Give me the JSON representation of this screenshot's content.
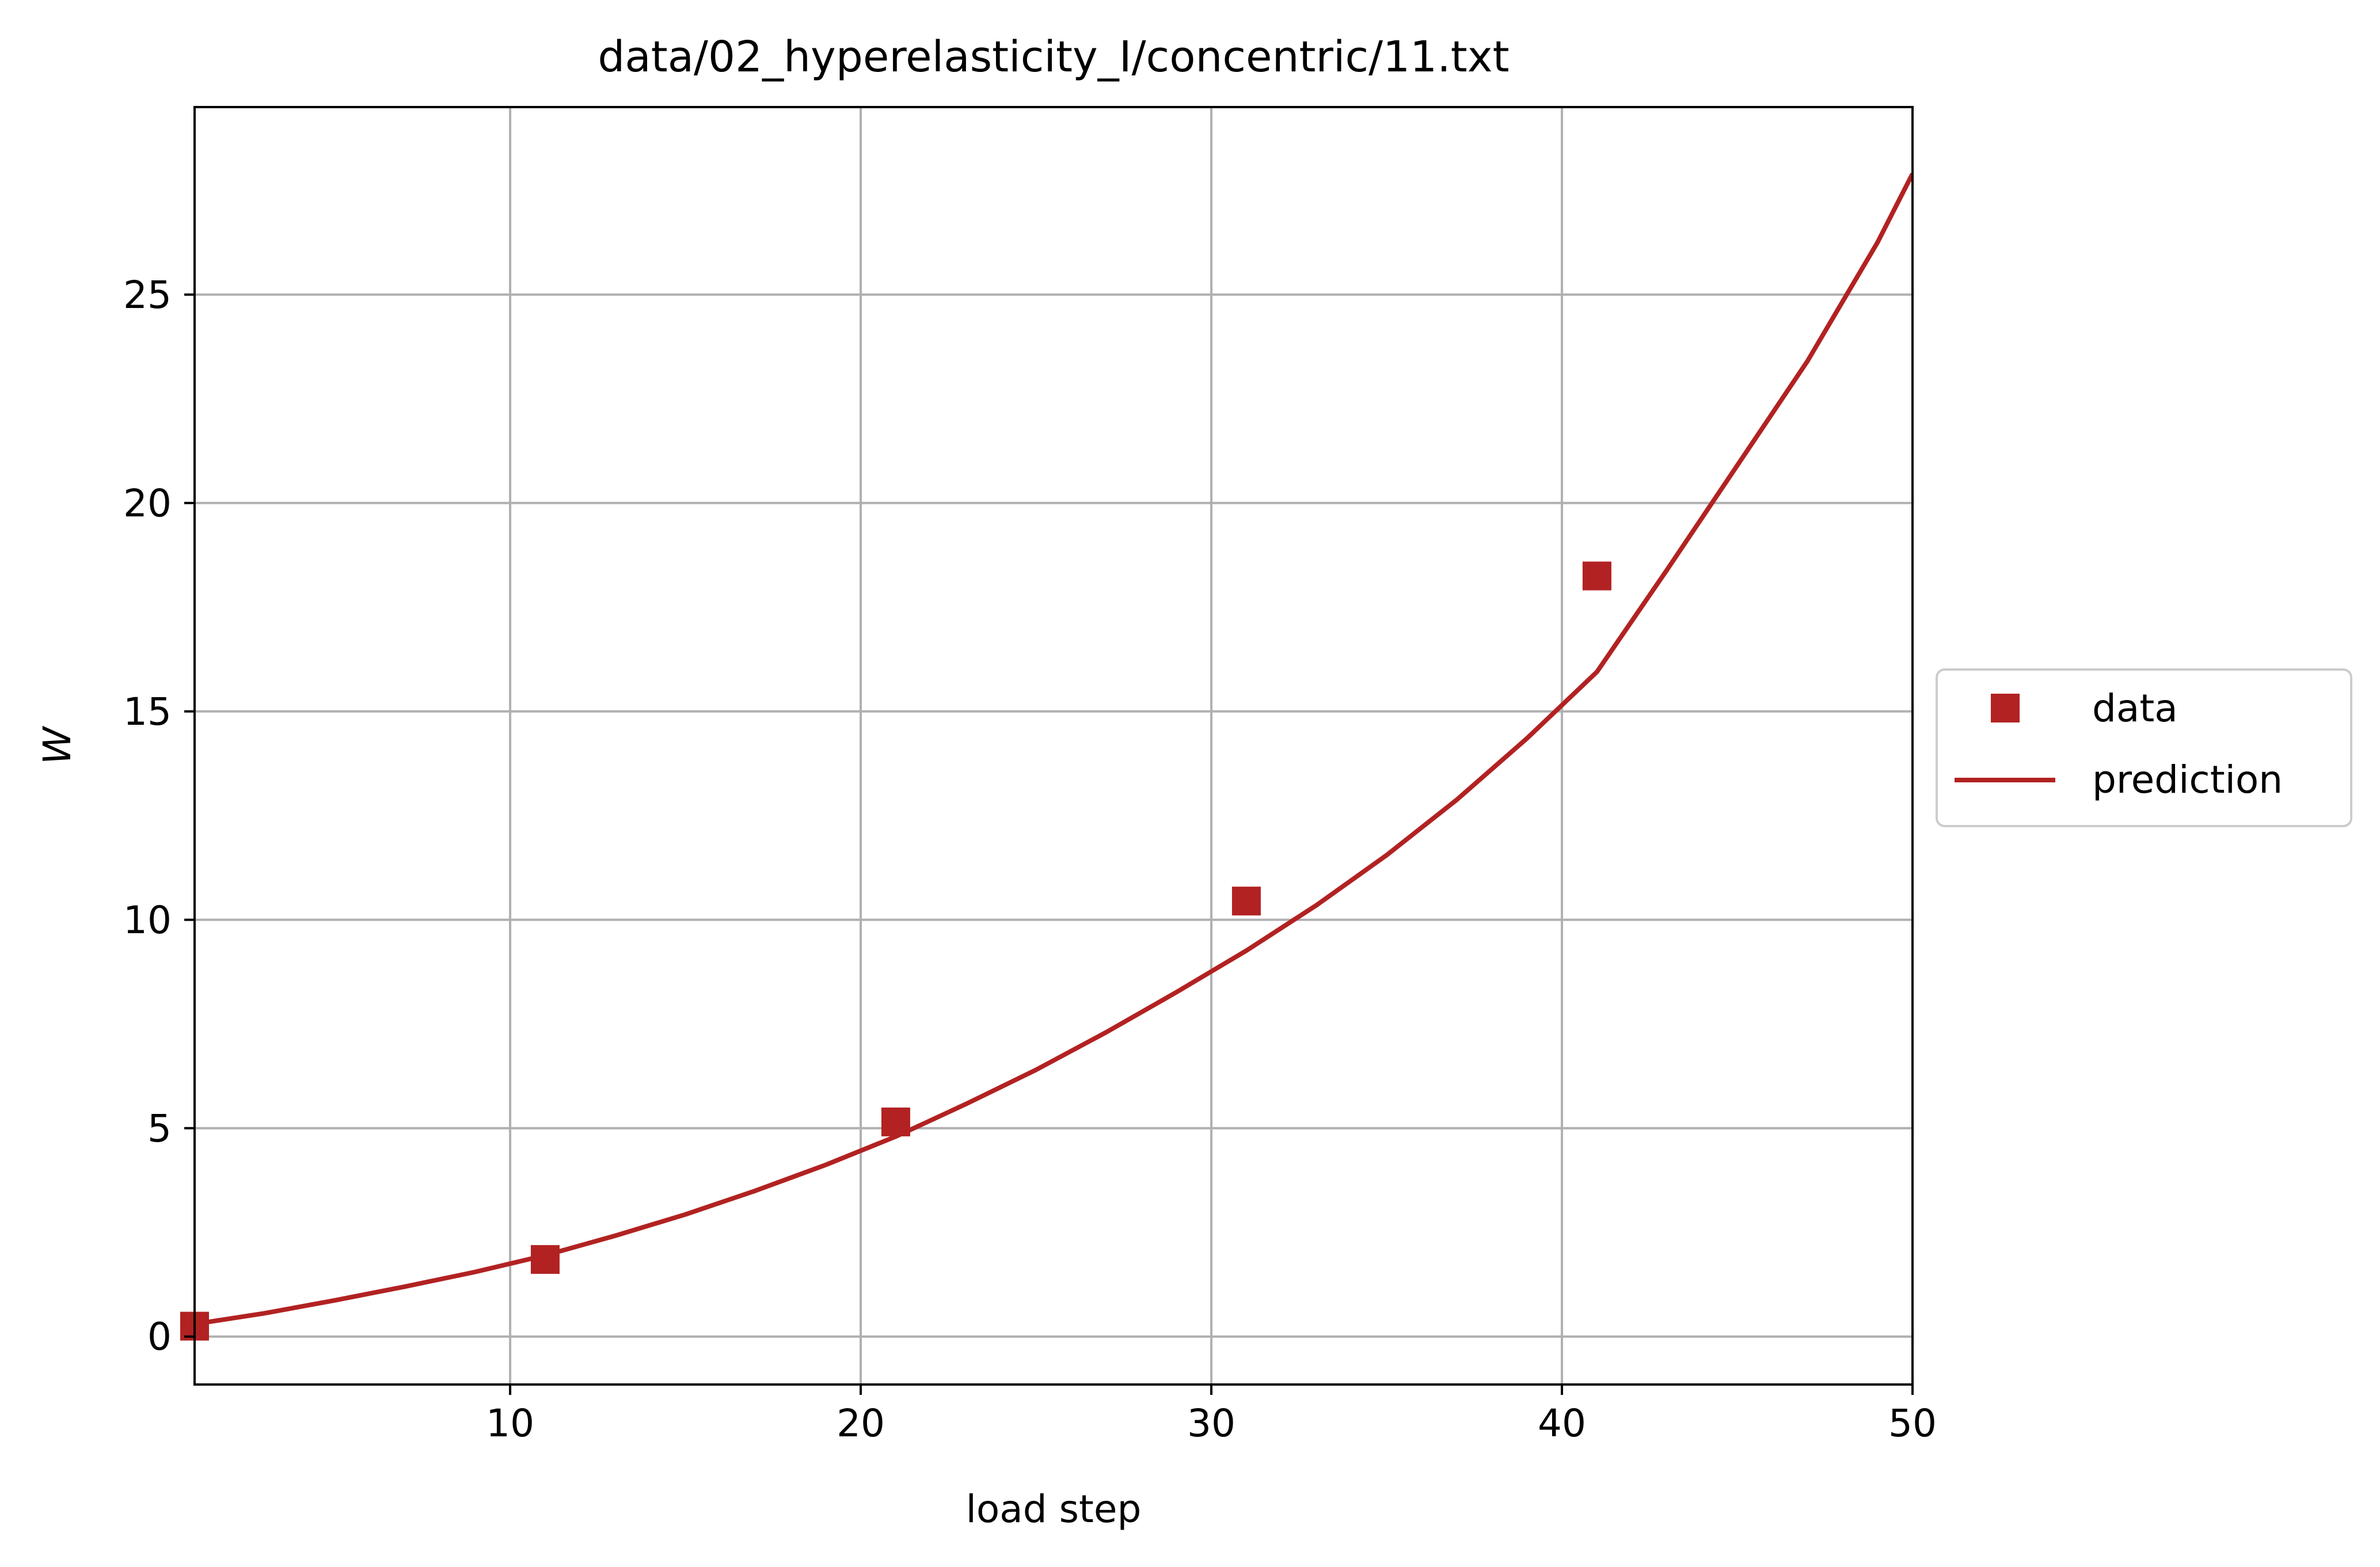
{
  "chart_data": {
    "type": "line",
    "title": "data/02_hyperelasticity_I/concentric/11.txt",
    "xlabel": "load step",
    "ylabel": "W",
    "xlim": [
      1,
      50
    ],
    "ylim": [
      -1.15,
      29.5
    ],
    "xticks": [
      10,
      20,
      30,
      40,
      50
    ],
    "yticks": [
      0,
      5,
      10,
      15,
      20,
      25
    ],
    "grid": true,
    "legend_position": "center-right-outside",
    "color": "#b22222",
    "series": [
      {
        "name": "data",
        "kind": "markers",
        "x": [
          1,
          11,
          21,
          31,
          41
        ],
        "y": [
          0.25,
          1.85,
          5.15,
          10.45,
          18.25
        ]
      },
      {
        "name": "prediction",
        "kind": "line",
        "x": [
          1,
          3,
          5,
          7,
          9,
          11,
          13,
          15,
          17,
          19,
          21,
          23,
          25,
          27,
          29,
          31,
          33,
          35,
          37,
          39,
          41,
          43,
          45,
          47,
          49,
          50
        ],
        "y": [
          0.3,
          0.56,
          0.87,
          1.2,
          1.55,
          1.95,
          2.42,
          2.93,
          3.5,
          4.12,
          4.8,
          5.58,
          6.4,
          7.3,
          8.26,
          9.26,
          10.35,
          11.55,
          12.88,
          14.35,
          15.95,
          18.4,
          20.9,
          23.4,
          26.25,
          27.9
        ]
      }
    ]
  }
}
